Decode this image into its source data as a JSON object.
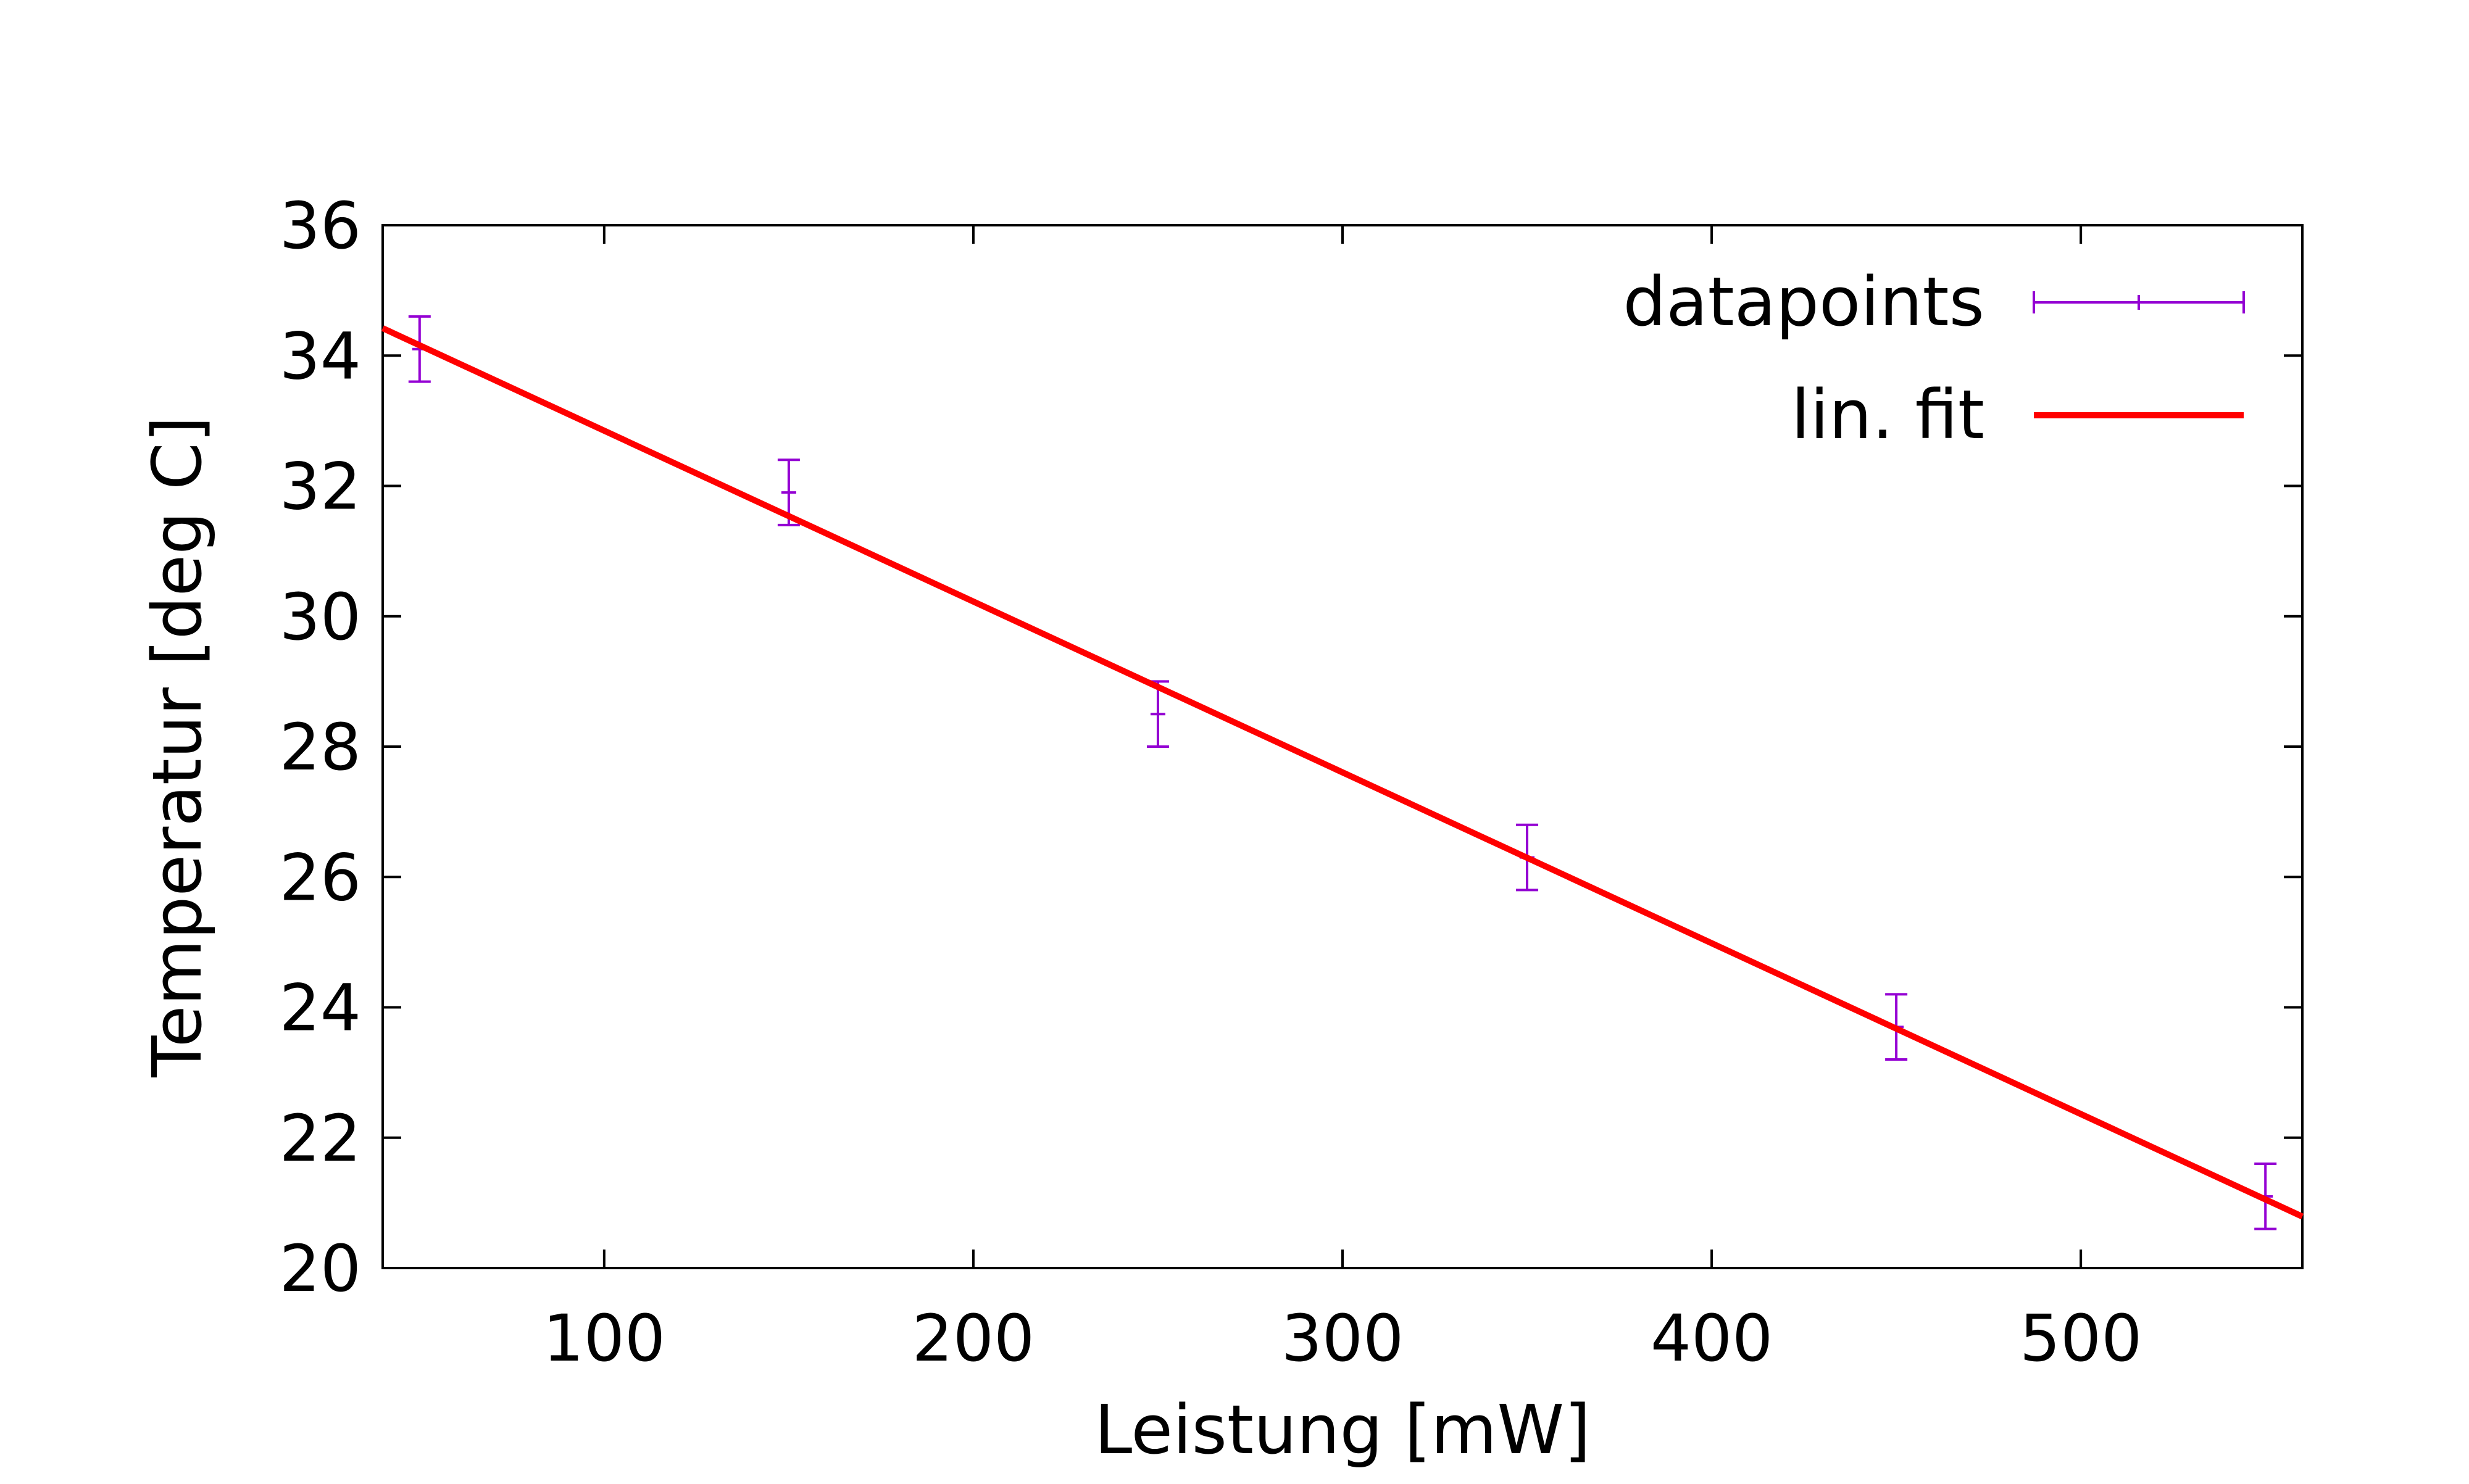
{
  "chart_data": {
    "type": "scatter",
    "xlabel": "Leistung [mW]",
    "ylabel": "Temperatur [deg C]",
    "xlim": [
      40,
      560
    ],
    "ylim": [
      20,
      36
    ],
    "x_ticks": [
      100,
      200,
      300,
      400,
      500
    ],
    "y_ticks": [
      20,
      22,
      24,
      26,
      28,
      30,
      32,
      34,
      36
    ],
    "grid": false,
    "legend_position": "top-right",
    "series": [
      {
        "name": "datapoints",
        "kind": "errorbars",
        "color": "#9400d3",
        "points": [
          {
            "x": 50,
            "y": 34.1,
            "err": 0.5
          },
          {
            "x": 150,
            "y": 31.9,
            "err": 0.5
          },
          {
            "x": 250,
            "y": 28.5,
            "err": 0.5
          },
          {
            "x": 350,
            "y": 26.3,
            "err": 0.5
          },
          {
            "x": 450,
            "y": 23.7,
            "err": 0.5
          },
          {
            "x": 550,
            "y": 21.1,
            "err": 0.5
          }
        ]
      },
      {
        "name": "lin. fit",
        "kind": "line",
        "color": "#ff0000",
        "points": [
          {
            "x": 40,
            "y": 34.42
          },
          {
            "x": 560,
            "y": 20.79
          }
        ]
      }
    ]
  }
}
